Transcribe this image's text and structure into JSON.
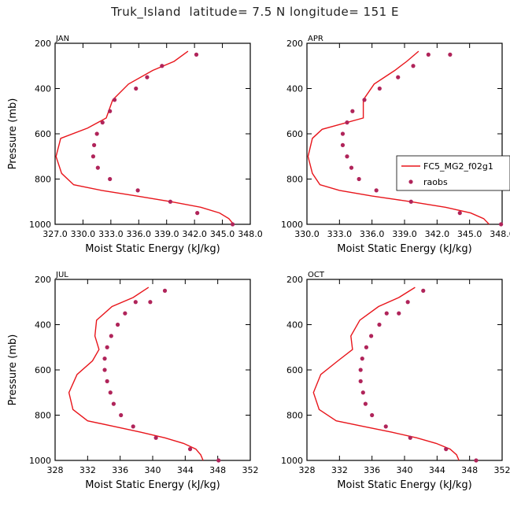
{
  "title": "Truk_Island  latitude= 7.5 N longitude= 151 E",
  "colors": {
    "model": "#e8151b",
    "obs": "#b0245a",
    "axis": "#000000"
  },
  "legend": {
    "model_label": "FC5_MG2_f02g1",
    "obs_label": "raobs"
  },
  "chart_data": [
    {
      "type": "line",
      "panel": "JAN",
      "xlabel": "Moist Static Energy (kJ/kg)",
      "ylabel": "Pressure (mb)",
      "xlim": [
        327.0,
        348.0
      ],
      "ylim": [
        1000,
        200
      ],
      "xticks": [
        "327.0",
        "330.0",
        "333.0",
        "336.0",
        "339.0",
        "342.0",
        "345.0",
        "348.0"
      ],
      "yticks": [
        "200",
        "400",
        "600",
        "800",
        "1000"
      ],
      "series": [
        {
          "name": "FC5_MG2_f02g1",
          "kind": "line",
          "x": [
            346.2,
            345.7,
            344.7,
            342.7,
            339.5,
            335.8,
            332.0,
            329.0,
            327.7,
            327.1,
            327.6,
            330.5,
            332.5,
            333.2,
            334.9,
            337.5,
            339.8,
            341.3
          ],
          "y": [
            1000,
            975,
            950,
            925,
            900,
            875,
            850,
            825,
            775,
            700,
            620,
            575,
            530,
            450,
            380,
            320,
            280,
            235
          ]
        },
        {
          "name": "raobs",
          "kind": "scatter",
          "x": [
            346.1,
            342.3,
            339.4,
            335.9,
            332.9,
            331.6,
            331.1,
            331.2,
            331.5,
            332.1,
            332.9,
            333.4,
            335.7,
            336.9,
            338.5,
            342.2
          ],
          "y": [
            1000,
            950,
            900,
            850,
            800,
            750,
            700,
            650,
            600,
            550,
            500,
            450,
            400,
            350,
            300,
            250
          ]
        }
      ]
    },
    {
      "type": "line",
      "panel": "APR",
      "xlabel": "Moist Static Energy (kJ/kg)",
      "ylabel": "",
      "xlim": [
        330.0,
        348.0
      ],
      "ylim": [
        1000,
        200
      ],
      "xticks": [
        "330.0",
        "333.0",
        "336.0",
        "339.0",
        "342.0",
        "345.0",
        "348.0"
      ],
      "yticks": [
        "200",
        "400",
        "600",
        "800",
        "1000"
      ],
      "series": [
        {
          "name": "FC5_MG2_f02g1",
          "kind": "line",
          "x": [
            346.8,
            346.3,
            345.1,
            342.8,
            339.6,
            336.0,
            333.0,
            331.2,
            330.5,
            330.1,
            330.5,
            331.4,
            335.2,
            335.2,
            336.2,
            338.1,
            339.2,
            340.3
          ],
          "y": [
            1000,
            975,
            950,
            925,
            900,
            875,
            850,
            825,
            775,
            700,
            620,
            580,
            530,
            450,
            380,
            320,
            280,
            235
          ]
        },
        {
          "name": "raobs",
          "kind": "scatter",
          "x": [
            347.9,
            344.1,
            339.6,
            336.4,
            334.8,
            334.1,
            333.7,
            333.3,
            333.3,
            333.7,
            334.2,
            335.3,
            336.7,
            338.4,
            339.8,
            341.2,
            343.2
          ],
          "y": [
            1000,
            950,
            900,
            850,
            800,
            750,
            700,
            650,
            600,
            550,
            500,
            450,
            400,
            350,
            300,
            250,
            250
          ]
        }
      ]
    },
    {
      "type": "line",
      "panel": "JUL",
      "xlabel": "Moist Static Energy (kJ/kg)",
      "ylabel": "Pressure (mb)",
      "xlim": [
        328,
        352
      ],
      "ylim": [
        1000,
        200
      ],
      "xticks": [
        "328",
        "332",
        "336",
        "340",
        "344",
        "348",
        "352"
      ],
      "yticks": [
        "200",
        "400",
        "600",
        "800",
        "1000"
      ],
      "series": [
        {
          "name": "FC5_MG2_f02g1",
          "kind": "line",
          "x": [
            346.2,
            345.9,
            345.3,
            343.8,
            341.5,
            338.5,
            335.3,
            332.0,
            330.2,
            329.7,
            330.7,
            332.6,
            333.4,
            332.9,
            333.1,
            335.0,
            337.6,
            339.5
          ],
          "y": [
            1000,
            975,
            950,
            925,
            900,
            875,
            850,
            825,
            775,
            700,
            620,
            560,
            510,
            450,
            380,
            320,
            280,
            235
          ]
        },
        {
          "name": "raobs",
          "kind": "scatter",
          "x": [
            348.1,
            344.6,
            340.4,
            337.6,
            336.1,
            335.2,
            334.8,
            334.4,
            334.1,
            334.1,
            334.4,
            334.9,
            335.7,
            336.6,
            337.9,
            339.7,
            341.5
          ],
          "y": [
            1000,
            950,
            900,
            850,
            800,
            750,
            700,
            650,
            600,
            550,
            500,
            450,
            400,
            350,
            300,
            300,
            250
          ]
        }
      ]
    },
    {
      "type": "line",
      "panel": "OCT",
      "xlabel": "Moist Static Energy (kJ/kg)",
      "ylabel": "",
      "xlim": [
        328,
        352
      ],
      "ylim": [
        1000,
        200
      ],
      "xticks": [
        "328",
        "332",
        "336",
        "340",
        "344",
        "348",
        "352"
      ],
      "yticks": [
        "200",
        "400",
        "600",
        "800",
        "1000"
      ],
      "series": [
        {
          "name": "FC5_MG2_f02g1",
          "kind": "line",
          "x": [
            346.7,
            346.4,
            345.6,
            343.9,
            341.5,
            338.4,
            335.0,
            331.6,
            329.5,
            328.8,
            329.7,
            331.8,
            333.6,
            333.4,
            334.5,
            336.8,
            339.3,
            341.3
          ],
          "y": [
            1000,
            975,
            950,
            925,
            900,
            875,
            850,
            825,
            775,
            700,
            620,
            560,
            510,
            450,
            380,
            320,
            280,
            235
          ]
        },
        {
          "name": "raobs",
          "kind": "scatter",
          "x": [
            348.8,
            345.1,
            340.7,
            337.7,
            336.0,
            335.2,
            334.9,
            334.6,
            334.6,
            334.8,
            335.3,
            335.9,
            336.9,
            337.8,
            339.3,
            340.4,
            342.3
          ],
          "y": [
            1000,
            950,
            900,
            850,
            800,
            750,
            700,
            650,
            600,
            550,
            500,
            450,
            400,
            350,
            350,
            300,
            250
          ]
        }
      ]
    }
  ]
}
